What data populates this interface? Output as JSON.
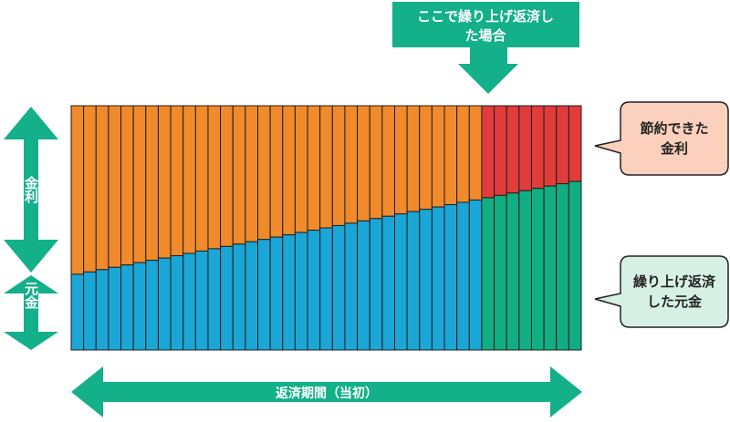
{
  "chart_data": {
    "type": "bar",
    "stacked": true,
    "bar_count": 41,
    "prepay_from_index": 33,
    "series": [
      {
        "name": "元金",
        "principal_ratio_start": 0.31,
        "principal_ratio_end": 0.69
      },
      {
        "name": "金利"
      }
    ],
    "colors": {
      "principal": "#1aa6d6",
      "interest": "#f08a2a",
      "saved_interest": "#e13b3b",
      "prepaid_principal": "#12ae83",
      "accent": "#14b08a",
      "callout_interest_bg": "#fbd0bd",
      "callout_principal_bg": "#d6f0e6"
    }
  },
  "labels": {
    "top_arrow_line1": "ここで繰り上げ返済し",
    "top_arrow_line2": "た場合",
    "left_interest": "金利",
    "left_principal": "元金",
    "bottom_axis": "返済期間（当初）",
    "callout_saved_line1": "節約できた",
    "callout_saved_line2": "金利",
    "callout_prepaid_line1": "繰り上げ返済",
    "callout_prepaid_line2": "した元金"
  }
}
